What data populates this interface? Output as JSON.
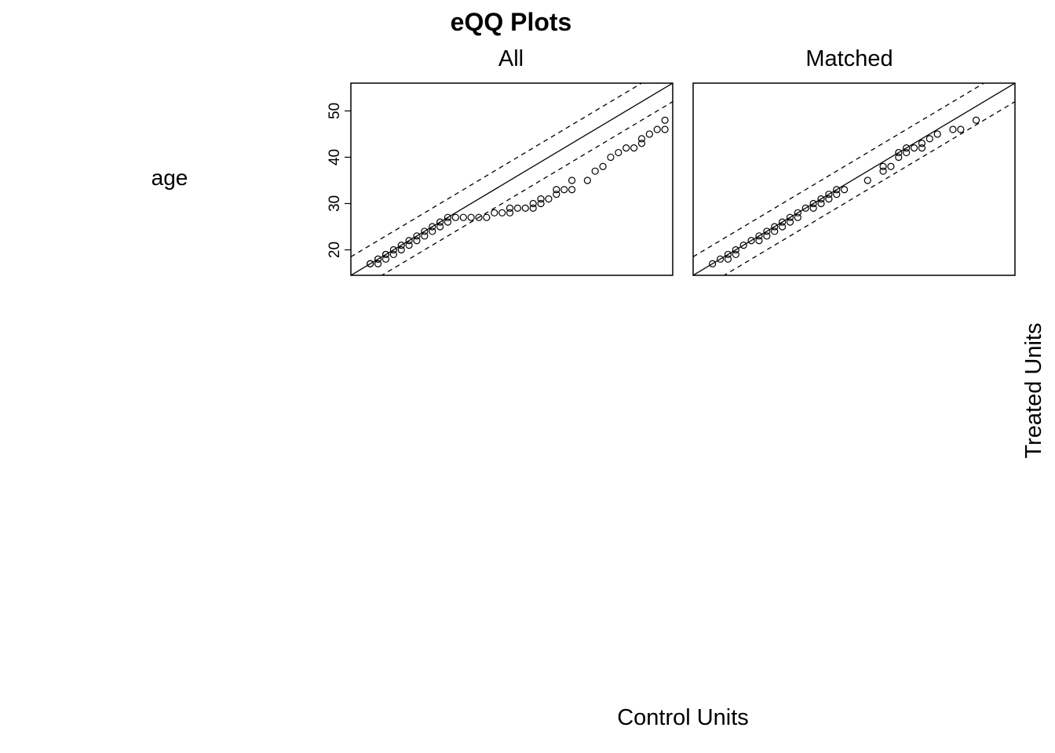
{
  "chart_data": {
    "type": "scatter",
    "title": "eQQ Plots",
    "variable": "age",
    "xlabel": "Control Units",
    "ylabel": "Treated Units",
    "ylim": [
      14.5,
      56
    ],
    "yticks": [
      20,
      30,
      40,
      50
    ],
    "x_axis_ticks_shown": false,
    "grid": false,
    "reference_lines": {
      "identity": "solid",
      "bands": "dashed",
      "band_offset": 4
    },
    "panels": [
      {
        "name": "All",
        "points": [
          [
            17,
            17
          ],
          [
            17,
            17
          ],
          [
            18,
            17
          ],
          [
            18,
            18
          ],
          [
            18,
            18
          ],
          [
            19,
            18
          ],
          [
            19,
            19
          ],
          [
            19,
            19
          ],
          [
            20,
            19
          ],
          [
            20,
            20
          ],
          [
            21,
            20
          ],
          [
            21,
            21
          ],
          [
            22,
            21
          ],
          [
            22,
            22
          ],
          [
            23,
            22
          ],
          [
            23,
            23
          ],
          [
            24,
            23
          ],
          [
            24,
            24
          ],
          [
            25,
            24
          ],
          [
            25,
            25
          ],
          [
            26,
            25
          ],
          [
            26,
            26
          ],
          [
            27,
            26
          ],
          [
            27,
            27
          ],
          [
            28,
            27
          ],
          [
            29,
            27
          ],
          [
            30,
            27
          ],
          [
            31,
            27
          ],
          [
            32,
            27
          ],
          [
            33,
            28
          ],
          [
            34,
            28
          ],
          [
            35,
            28
          ],
          [
            35,
            29
          ],
          [
            36,
            29
          ],
          [
            37,
            29
          ],
          [
            38,
            29
          ],
          [
            38,
            30
          ],
          [
            39,
            30
          ],
          [
            39,
            31
          ],
          [
            40,
            31
          ],
          [
            41,
            32
          ],
          [
            41,
            33
          ],
          [
            42,
            33
          ],
          [
            43,
            33
          ],
          [
            43,
            35
          ],
          [
            45,
            35
          ],
          [
            46,
            37
          ],
          [
            47,
            38
          ],
          [
            48,
            40
          ],
          [
            49,
            41
          ],
          [
            50,
            42
          ],
          [
            51,
            42
          ],
          [
            52,
            43
          ],
          [
            52,
            44
          ],
          [
            53,
            45
          ],
          [
            54,
            46
          ],
          [
            55,
            46
          ],
          [
            55,
            48
          ]
        ]
      },
      {
        "name": "Matched",
        "points": [
          [
            17,
            17
          ],
          [
            18,
            18
          ],
          [
            19,
            18
          ],
          [
            19,
            19
          ],
          [
            20,
            19
          ],
          [
            20,
            20
          ],
          [
            21,
            21
          ],
          [
            22,
            22
          ],
          [
            23,
            22
          ],
          [
            23,
            23
          ],
          [
            24,
            23
          ],
          [
            24,
            24
          ],
          [
            25,
            24
          ],
          [
            25,
            25
          ],
          [
            26,
            25
          ],
          [
            26,
            26
          ],
          [
            27,
            26
          ],
          [
            27,
            27
          ],
          [
            28,
            27
          ],
          [
            28,
            28
          ],
          [
            29,
            29
          ],
          [
            30,
            29
          ],
          [
            30,
            30
          ],
          [
            31,
            30
          ],
          [
            31,
            31
          ],
          [
            32,
            31
          ],
          [
            32,
            32
          ],
          [
            33,
            32
          ],
          [
            33,
            33
          ],
          [
            34,
            33
          ],
          [
            37,
            35
          ],
          [
            39,
            37
          ],
          [
            39,
            38
          ],
          [
            40,
            38
          ],
          [
            41,
            40
          ],
          [
            41,
            41
          ],
          [
            42,
            41
          ],
          [
            42,
            42
          ],
          [
            43,
            42
          ],
          [
            44,
            42
          ],
          [
            44,
            43
          ],
          [
            45,
            44
          ],
          [
            46,
            45
          ],
          [
            48,
            46
          ],
          [
            49,
            46
          ],
          [
            51,
            48
          ]
        ]
      }
    ]
  }
}
